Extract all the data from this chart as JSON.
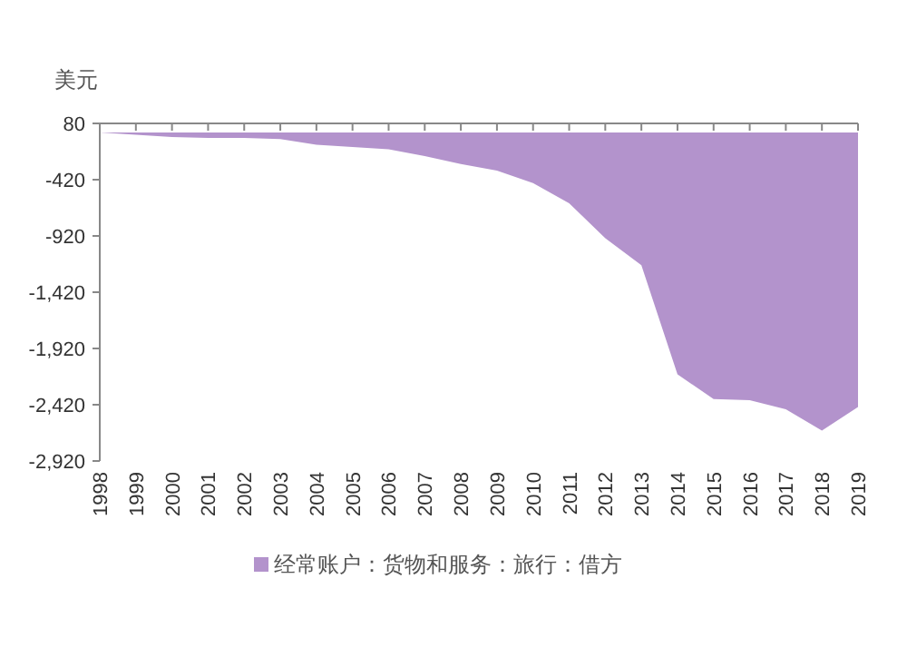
{
  "chart_data": {
    "type": "area",
    "ylabel": "美元",
    "categories": [
      "1998",
      "1999",
      "2000",
      "2001",
      "2002",
      "2003",
      "2004",
      "2005",
      "2006",
      "2007",
      "2008",
      "2009",
      "2010",
      "2011",
      "2012",
      "2013",
      "2014",
      "2015",
      "2016",
      "2017",
      "2018",
      "2019"
    ],
    "series": [
      {
        "name": "经常账户：货物和服务：旅行：借方",
        "color": "#b393cc",
        "values": [
          0,
          -20,
          -40,
          -50,
          -50,
          -60,
          -110,
          -130,
          -150,
          -210,
          -280,
          -340,
          -450,
          -630,
          -940,
          -1180,
          -2150,
          -2370,
          -2380,
          -2460,
          -2650,
          -2440
        ]
      }
    ],
    "ylim": [
      -2920,
      80
    ],
    "yticks": [
      80,
      -420,
      -920,
      {
        "value": -1420,
        "label": "-1,420"
      },
      {
        "value": -1920,
        "label": "-1,920"
      },
      {
        "value": -2420,
        "label": "-2,420"
      },
      {
        "value": -2920,
        "label": "-2,920"
      }
    ],
    "legend": "bottom",
    "grid": false
  }
}
